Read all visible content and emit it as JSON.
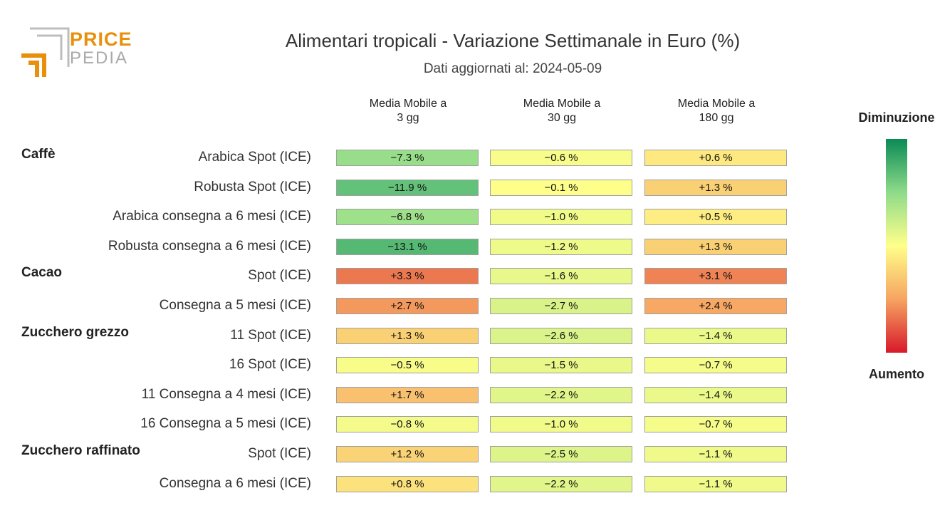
{
  "logo": {
    "word1": "PRICE",
    "word2": "PEDIA"
  },
  "chart_data": {
    "type": "table",
    "title": "Alimentari tropicali - Variazione Settimanale in Euro (%)",
    "subtitle": "Dati aggiornati al: 2024-05-09",
    "columns": [
      {
        "line1": "Media Mobile a",
        "line2": "3 gg"
      },
      {
        "line1": "Media Mobile a",
        "line2": "30 gg"
      },
      {
        "line1": "Media Mobile a",
        "line2": "180 gg"
      }
    ],
    "groups": [
      {
        "name": "Caffè",
        "rows": [
          {
            "label": "Arabica Spot (ICE)",
            "values": [
              -7.3,
              -0.6,
              0.6
            ]
          },
          {
            "label": "Robusta Spot (ICE)",
            "values": [
              -11.9,
              -0.1,
              1.3
            ]
          },
          {
            "label": "Arabica consegna a 6 mesi (ICE)",
            "values": [
              -6.8,
              -1.0,
              0.5
            ]
          },
          {
            "label": "Robusta consegna a 6 mesi (ICE)",
            "values": [
              -13.1,
              -1.2,
              1.3
            ]
          }
        ]
      },
      {
        "name": "Cacao",
        "rows": [
          {
            "label": "Spot (ICE)",
            "values": [
              3.3,
              -1.6,
              3.1
            ]
          },
          {
            "label": "Consegna a 5 mesi (ICE)",
            "values": [
              2.7,
              -2.7,
              2.4
            ]
          }
        ]
      },
      {
        "name": "Zucchero grezzo",
        "rows": [
          {
            "label": "11 Spot (ICE)",
            "values": [
              1.3,
              -2.6,
              -1.4
            ]
          },
          {
            "label": "16 Spot (ICE)",
            "values": [
              -0.5,
              -1.5,
              -0.7
            ]
          },
          {
            "label": "11 Consegna a 4 mesi (ICE)",
            "values": [
              1.7,
              -2.2,
              -1.4
            ]
          },
          {
            "label": "16 Consegna a 5 mesi (ICE)",
            "values": [
              -0.8,
              -1.0,
              -0.7
            ]
          }
        ]
      },
      {
        "name": "Zucchero raffinato",
        "rows": [
          {
            "label": "Spot (ICE)",
            "values": [
              1.2,
              -2.5,
              -1.1
            ]
          },
          {
            "label": "Consegna a 6 mesi (ICE)",
            "values": [
              0.8,
              -2.2,
              -1.1
            ]
          }
        ]
      }
    ],
    "legend": {
      "top_label": "Diminuzione",
      "bottom_label": "Aumento"
    },
    "colors": {
      "strong_decrease": "#0a8a55",
      "decrease": "#8edb8a",
      "neutral": "#ffff8a",
      "increase": "#f6a462",
      "strong_increase": "#d7192a"
    }
  }
}
